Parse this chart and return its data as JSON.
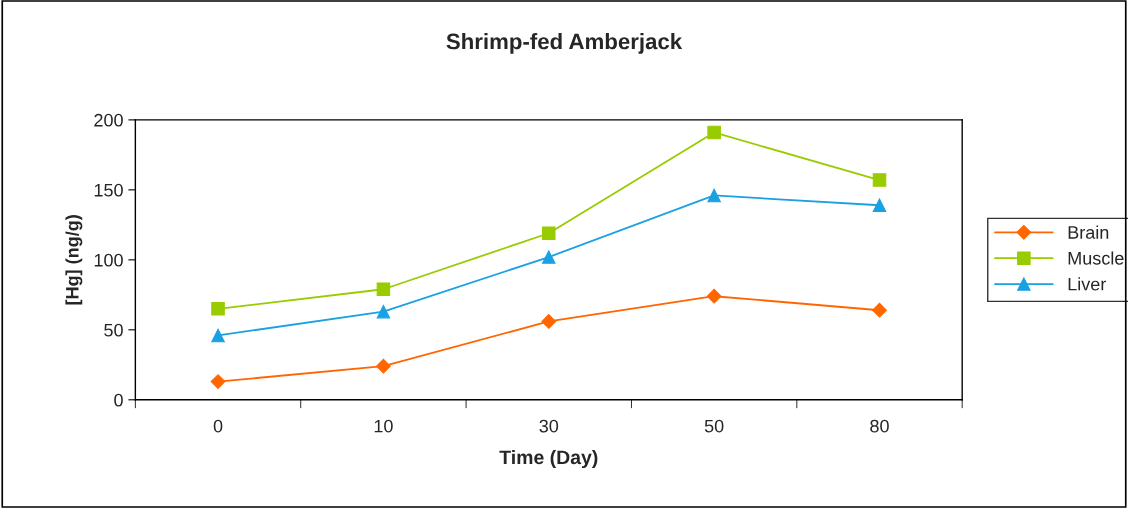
{
  "chart_data": {
    "type": "line",
    "title": "Shrimp-fed Amberjack",
    "xlabel": "Time (Day)",
    "ylabel": "[Hg] (ng/g)",
    "categories": [
      "0",
      "10",
      "30",
      "50",
      "80"
    ],
    "series": [
      {
        "name": "Brain",
        "color": "#ff6600",
        "marker": "diamond",
        "values": [
          13,
          24,
          56,
          74,
          64
        ]
      },
      {
        "name": "Muscle",
        "color": "#99cc00",
        "marker": "square",
        "values": [
          65,
          79,
          119,
          191,
          157
        ]
      },
      {
        "name": "Liver",
        "color": "#1ba1e2",
        "marker": "triangle",
        "values": [
          46,
          63,
          102,
          146,
          139
        ]
      }
    ],
    "ylim": [
      0,
      200
    ],
    "yticks": [
      0,
      50,
      100,
      150,
      200
    ],
    "grid": false,
    "legend": "right",
    "line_style": "solid"
  }
}
